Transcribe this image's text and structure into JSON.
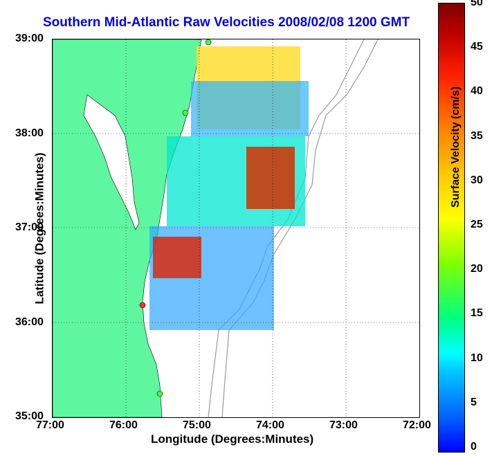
{
  "map": {
    "title": "Southern Mid-Atlantic Raw Velocities 2008/02/08 1200 GMT",
    "x_axis_label": "Longitude (Degrees:Minutes)",
    "y_axis_label": "Latitude (Degrees:Minutes)",
    "x_ticks": [
      "77:00",
      "76:00",
      "75:00",
      "74:00",
      "73:00",
      "72:00"
    ],
    "y_ticks": [
      "39:00",
      "38:00",
      "37:00",
      "36:00",
      "35:00"
    ],
    "land_color": "#5ef7a0",
    "grid": "dotted"
  },
  "colorbar": {
    "label": "Surface Velocity (cm/s)",
    "ticks": [
      "50",
      "45",
      "40",
      "35",
      "30",
      "25",
      "20",
      "15",
      "10",
      "5",
      "0"
    ],
    "min": 0,
    "max": 50
  }
}
